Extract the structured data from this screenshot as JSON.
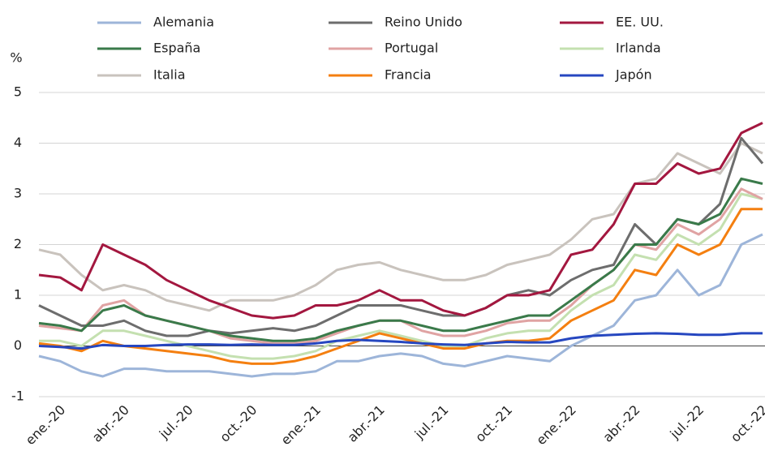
{
  "chart_data": {
    "type": "line",
    "ylabel": "%",
    "categories": [
      null,
      "ene.-20",
      null,
      null,
      "abr.-20",
      null,
      null,
      "jul.-20",
      null,
      null,
      "oct.-20",
      null,
      null,
      "ene.-21",
      null,
      null,
      "abr.-21",
      null,
      null,
      "jul.-21",
      null,
      null,
      "oct.-21",
      null,
      null,
      "ene.-22",
      null,
      null,
      "abr.-22",
      null,
      null,
      "jul.-22",
      null,
      null,
      "oct.-22"
    ],
    "ylim": [
      -1,
      5
    ],
    "yticks": [
      -1,
      0,
      1,
      2,
      3,
      4,
      5
    ],
    "grid": true,
    "series": [
      {
        "name": "Alemania",
        "color": "#9db5d9",
        "values": [
          -0.2,
          -0.3,
          -0.5,
          -0.6,
          -0.45,
          -0.45,
          -0.5,
          -0.5,
          -0.5,
          -0.55,
          -0.6,
          -0.55,
          -0.55,
          -0.5,
          -0.3,
          -0.3,
          -0.2,
          -0.15,
          -0.2,
          -0.35,
          -0.4,
          -0.3,
          -0.2,
          -0.25,
          -0.3,
          0.0,
          0.2,
          0.4,
          0.9,
          1.0,
          1.5,
          1.0,
          1.2,
          2.0,
          2.2
        ]
      },
      {
        "name": "Reino Unido",
        "color": "#6d6d6d",
        "values": [
          0.8,
          0.6,
          0.4,
          0.4,
          0.5,
          0.3,
          0.2,
          0.2,
          0.3,
          0.25,
          0.3,
          0.35,
          0.3,
          0.4,
          0.6,
          0.8,
          0.8,
          0.8,
          0.7,
          0.6,
          0.6,
          0.75,
          1.0,
          1.1,
          1.0,
          1.3,
          1.5,
          1.6,
          2.4,
          2.0,
          2.5,
          2.4,
          2.8,
          4.1,
          3.6
        ]
      },
      {
        "name": "EE. UU.",
        "color": "#a3173f",
        "values": [
          1.4,
          1.35,
          1.1,
          2.0,
          1.8,
          1.6,
          1.3,
          1.1,
          0.9,
          0.75,
          0.6,
          0.55,
          0.6,
          0.8,
          0.8,
          0.9,
          1.1,
          0.9,
          0.9,
          0.7,
          0.6,
          0.75,
          1.0,
          1.0,
          1.1,
          1.8,
          1.9,
          2.4,
          3.2,
          3.2,
          3.6,
          3.4,
          3.5,
          4.2,
          4.4
        ]
      },
      {
        "name": "España",
        "color": "#3a7a4a",
        "values": [
          0.45,
          0.4,
          0.3,
          0.7,
          0.8,
          0.6,
          0.5,
          0.4,
          0.3,
          0.2,
          0.15,
          0.1,
          0.1,
          0.15,
          0.3,
          0.4,
          0.5,
          0.5,
          0.4,
          0.3,
          0.3,
          0.4,
          0.5,
          0.6,
          0.6,
          0.9,
          1.2,
          1.5,
          2.0,
          2.0,
          2.5,
          2.4,
          2.6,
          3.3,
          3.2
        ]
      },
      {
        "name": "Portugal",
        "color": "#e0a3a3",
        "values": [
          0.4,
          0.35,
          0.3,
          0.8,
          0.9,
          0.6,
          0.5,
          0.4,
          0.3,
          0.15,
          0.1,
          0.05,
          0.05,
          0.1,
          0.25,
          0.4,
          0.5,
          0.5,
          0.3,
          0.2,
          0.2,
          0.3,
          0.45,
          0.5,
          0.5,
          0.8,
          1.2,
          1.5,
          2.0,
          1.9,
          2.4,
          2.2,
          2.5,
          3.1,
          2.9
        ]
      },
      {
        "name": "Irlanda",
        "color": "#c4e0b0",
        "values": [
          0.1,
          0.1,
          0.0,
          0.3,
          0.3,
          0.2,
          0.1,
          0.0,
          -0.1,
          -0.2,
          -0.25,
          -0.25,
          -0.2,
          -0.1,
          0.1,
          0.2,
          0.3,
          0.2,
          0.1,
          0.0,
          0.0,
          0.15,
          0.25,
          0.3,
          0.3,
          0.7,
          1.0,
          1.2,
          1.8,
          1.7,
          2.2,
          2.0,
          2.3,
          3.0,
          2.9
        ]
      },
      {
        "name": "Italia",
        "color": "#c9c3bd",
        "values": [
          1.9,
          1.8,
          1.4,
          1.1,
          1.2,
          1.1,
          0.9,
          0.8,
          0.7,
          0.9,
          0.9,
          0.9,
          1.0,
          1.2,
          1.5,
          1.6,
          1.65,
          1.5,
          1.4,
          1.3,
          1.3,
          1.4,
          1.6,
          1.7,
          1.8,
          2.1,
          2.5,
          2.6,
          3.2,
          3.3,
          3.8,
          3.6,
          3.4,
          4.0,
          3.8
        ]
      },
      {
        "name": "Francia",
        "color": "#f47f10",
        "values": [
          0.05,
          0.0,
          -0.1,
          0.1,
          0.0,
          -0.05,
          -0.1,
          -0.15,
          -0.2,
          -0.3,
          -0.35,
          -0.35,
          -0.3,
          -0.2,
          -0.05,
          0.1,
          0.25,
          0.15,
          0.05,
          -0.05,
          -0.05,
          0.05,
          0.1,
          0.1,
          0.15,
          0.5,
          0.7,
          0.9,
          1.5,
          1.4,
          2.0,
          1.8,
          2.0,
          2.7,
          2.7
        ]
      },
      {
        "name": "Japón",
        "color": "#2647c0",
        "values": [
          0.0,
          -0.02,
          -0.05,
          0.02,
          0.0,
          0.0,
          0.02,
          0.03,
          0.03,
          0.02,
          0.03,
          0.02,
          0.02,
          0.05,
          0.1,
          0.12,
          0.1,
          0.08,
          0.05,
          0.03,
          0.02,
          0.05,
          0.08,
          0.07,
          0.07,
          0.15,
          0.2,
          0.22,
          0.24,
          0.25,
          0.24,
          0.22,
          0.22,
          0.25,
          0.25
        ]
      }
    ]
  }
}
